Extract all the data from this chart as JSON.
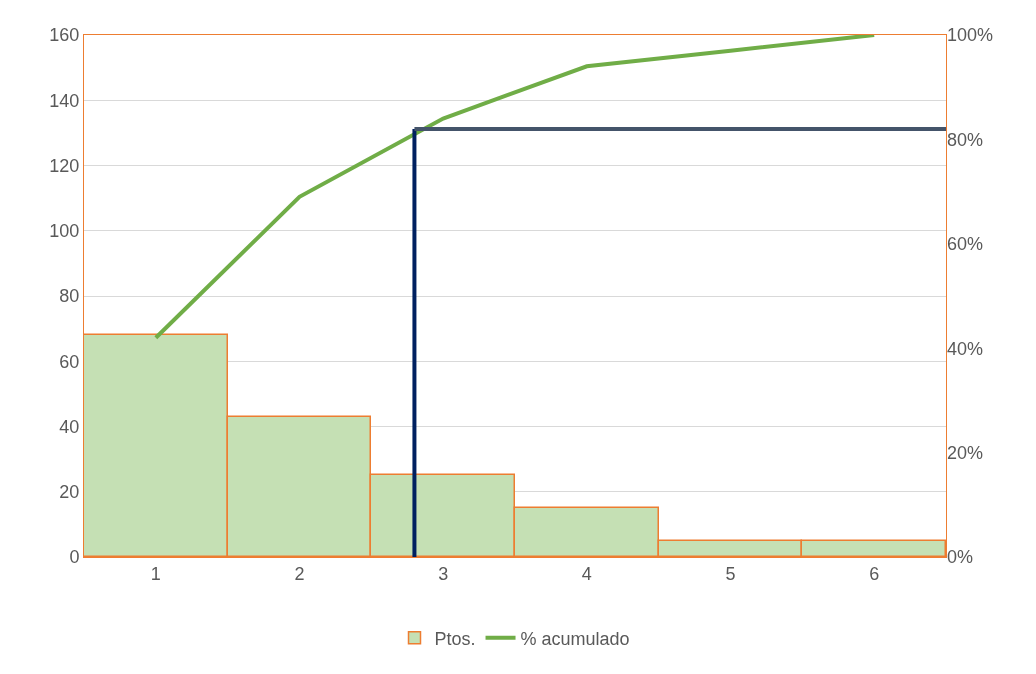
{
  "chart_data": {
    "type": "bar",
    "x": [
      1,
      2,
      3,
      4,
      5,
      6
    ],
    "xlim": [
      0.5,
      6.5
    ],
    "xticks": [
      1,
      2,
      3,
      4,
      5,
      6
    ],
    "series": [
      {
        "name": "Ptos.",
        "color": "#c5e0b4",
        "values": [
          68,
          43,
          25,
          15,
          5,
          5
        ]
      },
      {
        "name": "% acumulado",
        "type": "line",
        "axis": "y2",
        "color": "#70ad47",
        "values": [
          42,
          69,
          84,
          94,
          97,
          100
        ]
      }
    ],
    "ylim": [
      0,
      160
    ],
    "yticks": [
      0,
      20,
      40,
      60,
      80,
      100,
      120,
      140,
      160
    ],
    "y2lim": [
      0,
      100
    ],
    "y2ticks": [
      {
        "value": 0,
        "label": "0%"
      },
      {
        "value": 20,
        "label": "20%"
      },
      {
        "value": 40,
        "label": "40%"
      },
      {
        "value": 60,
        "label": "60%"
      },
      {
        "value": 80,
        "label": "80%"
      },
      {
        "value": 100,
        "label": "100%"
      }
    ],
    "ref_lines": [
      {
        "axis": "x",
        "value": 2.8,
        "color": "#002060"
      },
      {
        "axis": "y2",
        "value": 82,
        "color": "#44546a"
      }
    ],
    "grid": "y",
    "legend": "bottom",
    "marker": "none",
    "line_style": "solid"
  }
}
